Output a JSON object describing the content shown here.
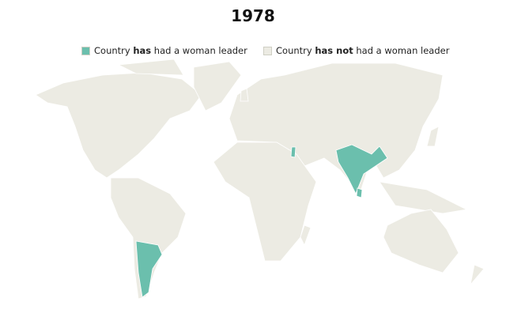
{
  "title": "1978",
  "legend": [
    {
      "color": "#6bbfad",
      "parts": [
        {
          "text": "Country ",
          "bold": false
        },
        {
          "text": "has",
          "bold": true
        },
        {
          "text": " had a woman leader",
          "bold": false
        }
      ]
    },
    {
      "color": "#ecebe3",
      "parts": [
        {
          "text": "Country ",
          "bold": false
        },
        {
          "text": "has not",
          "bold": true
        },
        {
          "text": " had a woman leader",
          "bold": false
        }
      ]
    }
  ]
}
